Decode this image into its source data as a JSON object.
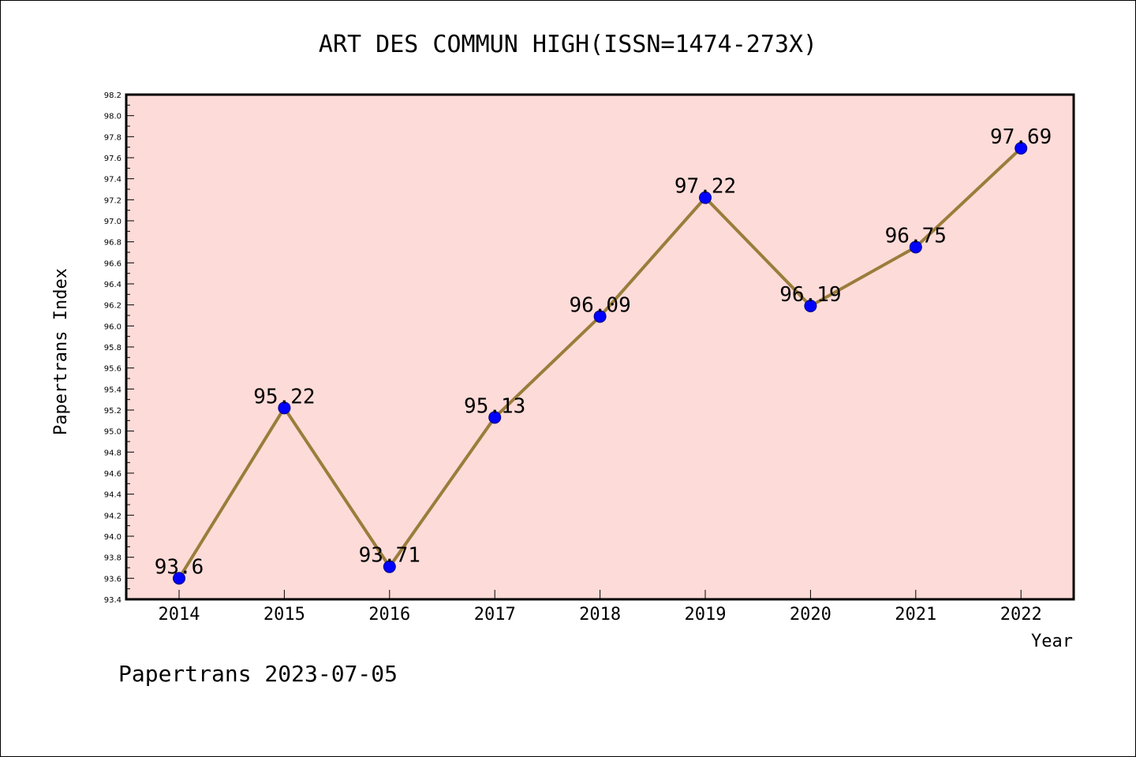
{
  "chart_data": {
    "type": "line",
    "title": "ART DES COMMUN HIGH(ISSN=1474-273X)",
    "xlabel": "Year",
    "ylabel": "Papertrans Index",
    "categories": [
      "2014",
      "2015",
      "2016",
      "2017",
      "2018",
      "2019",
      "2020",
      "2021",
      "2022"
    ],
    "values": [
      93.6,
      95.22,
      93.71,
      95.13,
      96.09,
      97.22,
      96.19,
      96.75,
      97.69
    ],
    "data_labels": [
      "93.6",
      "95.22",
      "93.71",
      "95.13",
      "96.09",
      "97.22",
      "96.19",
      "96.75",
      "97.69"
    ],
    "ylim": [
      93.4,
      98.2
    ],
    "yticks": [
      "93.4",
      "93.6",
      "93.8",
      "94.0",
      "94.2",
      "94.4",
      "94.6",
      "94.8",
      "95.0",
      "95.2",
      "95.4",
      "95.6",
      "95.8",
      "96.0",
      "96.2",
      "96.4",
      "96.6",
      "96.8",
      "97.0",
      "97.2",
      "97.4",
      "97.6",
      "97.8",
      "98.0",
      "98.2"
    ],
    "grid": false,
    "legend": "none",
    "colors": {
      "plot_background": "#fddbd8",
      "line": "#9a7d3b",
      "marker": "#0000ff",
      "marker_edge": "#000080"
    }
  },
  "footer": "Papertrans 2023-07-05"
}
